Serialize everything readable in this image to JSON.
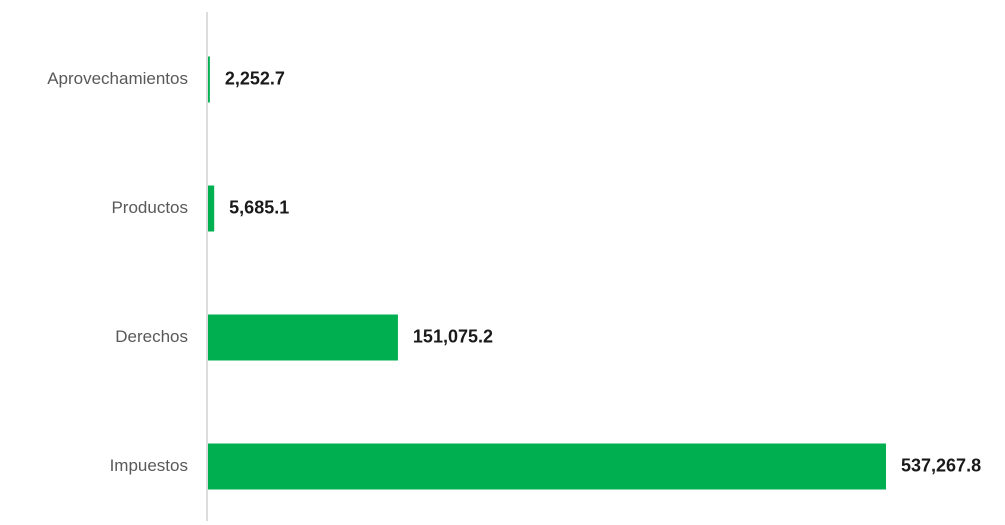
{
  "chart_data": {
    "type": "bar",
    "orientation": "horizontal",
    "categories": [
      "Aprovechamientos",
      "Productos",
      "Derechos",
      "Impuestos"
    ],
    "values": [
      2252.7,
      5685.1,
      151075.2,
      537267.8
    ],
    "value_labels": [
      "2,252.7",
      "5,685.1",
      "151,075.2",
      "537,267.8"
    ],
    "color": "#00af50"
  }
}
